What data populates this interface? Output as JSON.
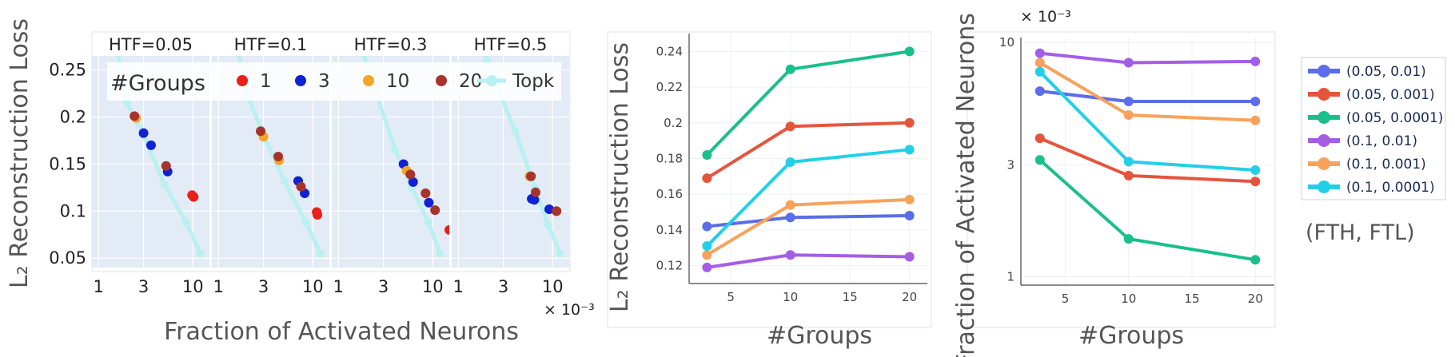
{
  "chart_data": [
    {
      "type": "scatter",
      "panels": [
        {
          "title": "HTF=0.05",
          "topk": [
            [
              1.0,
              0.375
            ],
            [
              2.0,
              0.215
            ],
            [
              3.0,
              0.181
            ],
            [
              5.0,
              0.128
            ],
            [
              8.5,
              0.088
            ],
            [
              12.0,
              0.055
            ]
          ],
          "points": [
            {
              "group": "1",
              "x": 9.8,
              "y": 0.117
            },
            {
              "group": "1",
              "x": 10.2,
              "y": 0.115
            },
            {
              "group": "3",
              "x": 3.0,
              "y": 0.183
            },
            {
              "group": "3",
              "x": 3.6,
              "y": 0.17
            },
            {
              "group": "3",
              "x": 5.4,
              "y": 0.142
            },
            {
              "group": "10",
              "x": 2.5,
              "y": 0.199
            },
            {
              "group": "20",
              "x": 2.4,
              "y": 0.201
            },
            {
              "group": "20",
              "x": 5.2,
              "y": 0.148
            }
          ]
        },
        {
          "title": "HTF=0.1",
          "topk": [
            [
              1.0,
              0.375
            ],
            [
              2.0,
              0.225
            ],
            [
              3.0,
              0.181
            ],
            [
              5.0,
              0.132
            ],
            [
              8.5,
              0.088
            ],
            [
              12.0,
              0.055
            ]
          ],
          "points": [
            {
              "group": "1",
              "x": 11.0,
              "y": 0.099
            },
            {
              "group": "1",
              "x": 11.2,
              "y": 0.096
            },
            {
              "group": "3",
              "x": 7.0,
              "y": 0.132
            },
            {
              "group": "3",
              "x": 8.2,
              "y": 0.119
            },
            {
              "group": "10",
              "x": 3.0,
              "y": 0.179
            },
            {
              "group": "10",
              "x": 4.4,
              "y": 0.154
            },
            {
              "group": "20",
              "x": 2.8,
              "y": 0.185
            },
            {
              "group": "20",
              "x": 4.3,
              "y": 0.158
            },
            {
              "group": "20",
              "x": 7.5,
              "y": 0.126
            }
          ]
        },
        {
          "title": "HTF=0.3",
          "topk": [
            [
              1.0,
              0.375
            ],
            [
              2.0,
              0.255
            ],
            [
              4.0,
              0.165
            ],
            [
              6.0,
              0.125
            ],
            [
              9.0,
              0.088
            ],
            [
              12.0,
              0.055
            ]
          ],
          "points": [
            {
              "group": "1",
              "x": 15.0,
              "y": 0.08
            },
            {
              "group": "3",
              "x": 4.9,
              "y": 0.15
            },
            {
              "group": "3",
              "x": 6.2,
              "y": 0.131
            },
            {
              "group": "3",
              "x": 9.1,
              "y": 0.109
            },
            {
              "group": "10",
              "x": 5.3,
              "y": 0.143
            },
            {
              "group": "20",
              "x": 5.8,
              "y": 0.139
            },
            {
              "group": "20",
              "x": 8.4,
              "y": 0.119
            },
            {
              "group": "20",
              "x": 10.6,
              "y": 0.101
            }
          ]
        },
        {
          "title": "HTF=0.5",
          "topk": [
            [
              1.0,
              0.375
            ],
            [
              2.0,
              0.26
            ],
            [
              4.0,
              0.185
            ],
            [
              6.5,
              0.125
            ],
            [
              9.0,
              0.085
            ],
            [
              12.0,
              0.055
            ]
          ],
          "points": [
            {
              "group": "1",
              "x": 11.0,
              "y": 0.1
            },
            {
              "group": "3",
              "x": 6.0,
              "y": 0.113
            },
            {
              "group": "3",
              "x": 6.4,
              "y": 0.112
            },
            {
              "group": "3",
              "x": 9.2,
              "y": 0.102
            },
            {
              "group": "10",
              "x": 5.7,
              "y": 0.137
            },
            {
              "group": "20",
              "x": 5.9,
              "y": 0.137
            },
            {
              "group": "20",
              "x": 6.6,
              "y": 0.12
            },
            {
              "group": "20",
              "x": 11.0,
              "y": 0.1
            }
          ]
        }
      ],
      "legend": {
        "title": "#Groups",
        "items": [
          {
            "label": "1",
            "color": "#e8211a"
          },
          {
            "label": "3",
            "color": "#1221d1"
          },
          {
            "label": "10",
            "color": "#f4a523"
          },
          {
            "label": "20",
            "color": "#a6342c"
          },
          {
            "label": "Topk",
            "color": "#b9f0f0"
          }
        ]
      },
      "xlabel": "Fraction of Activated Neurons",
      "ylabel": "L₂ Reconstruction Loss",
      "x_scale": "log",
      "x_multiplier": "× 10⁻³",
      "xticks": [
        "1",
        "3",
        "10"
      ],
      "yticks": [
        "0.05",
        "0.1",
        "0.15",
        "0.2",
        "0.25"
      ],
      "ylim": [
        0.04,
        0.265
      ],
      "xlim": [
        0.85,
        15.0
      ]
    },
    {
      "type": "line",
      "x": [
        3,
        10,
        20
      ],
      "series": [
        {
          "name": "(0.05, 0.01)",
          "color": "#5b6de8",
          "values": [
            0.142,
            0.147,
            0.148
          ]
        },
        {
          "name": "(0.05, 0.001)",
          "color": "#e5553c",
          "values": [
            0.169,
            0.198,
            0.2
          ]
        },
        {
          "name": "(0.05, 0.0001)",
          "color": "#1bbf8a",
          "values": [
            0.182,
            0.23,
            0.24
          ]
        },
        {
          "name": "(0.1, 0.01)",
          "color": "#a45de8",
          "values": [
            0.119,
            0.126,
            0.125
          ]
        },
        {
          "name": "(0.1, 0.001)",
          "color": "#f7a25c",
          "values": [
            0.126,
            0.154,
            0.157
          ]
        },
        {
          "name": "(0.1, 0.0001)",
          "color": "#22cfe8",
          "values": [
            0.131,
            0.178,
            0.185
          ]
        }
      ],
      "xlabel": "#Groups",
      "ylabel": "L₂ Reconstruction Loss",
      "xticks": [
        "5",
        "10",
        "15",
        "20"
      ],
      "yticks": [
        "0.12",
        "0.14",
        "0.16",
        "0.18",
        "0.2",
        "0.22",
        "0.24"
      ],
      "xlim": [
        1.5,
        21.5
      ],
      "ylim": [
        0.11,
        0.25
      ],
      "grid": true
    },
    {
      "type": "line",
      "x": [
        3,
        10,
        20
      ],
      "y_scale": "log",
      "y_multiplier": "× 10⁻³",
      "series": [
        {
          "name": "(0.05, 0.01)",
          "color": "#5b6de8",
          "values": [
            6.2,
            5.6,
            5.6
          ]
        },
        {
          "name": "(0.05, 0.001)",
          "color": "#e5553c",
          "values": [
            3.9,
            2.7,
            2.55
          ]
        },
        {
          "name": "(0.05, 0.0001)",
          "color": "#1bbf8a",
          "values": [
            3.15,
            1.45,
            1.18
          ]
        },
        {
          "name": "(0.1, 0.01)",
          "color": "#a45de8",
          "values": [
            9.0,
            8.2,
            8.3
          ]
        },
        {
          "name": "(0.1, 0.001)",
          "color": "#f7a25c",
          "values": [
            8.2,
            4.9,
            4.65
          ]
        },
        {
          "name": "(0.1, 0.0001)",
          "color": "#22cfe8",
          "values": [
            7.5,
            3.1,
            2.85
          ]
        }
      ],
      "xlabel": "#Groups",
      "ylabel": "Fraction of Activated Neurons",
      "xticks": [
        "5",
        "10",
        "15",
        "20"
      ],
      "yticks": [
        "1",
        "3",
        "10"
      ],
      "xlim": [
        1.5,
        21.5
      ],
      "ylim": [
        0.92,
        10.5
      ],
      "grid": true,
      "legend_title": "(FTH, FTL)"
    }
  ]
}
